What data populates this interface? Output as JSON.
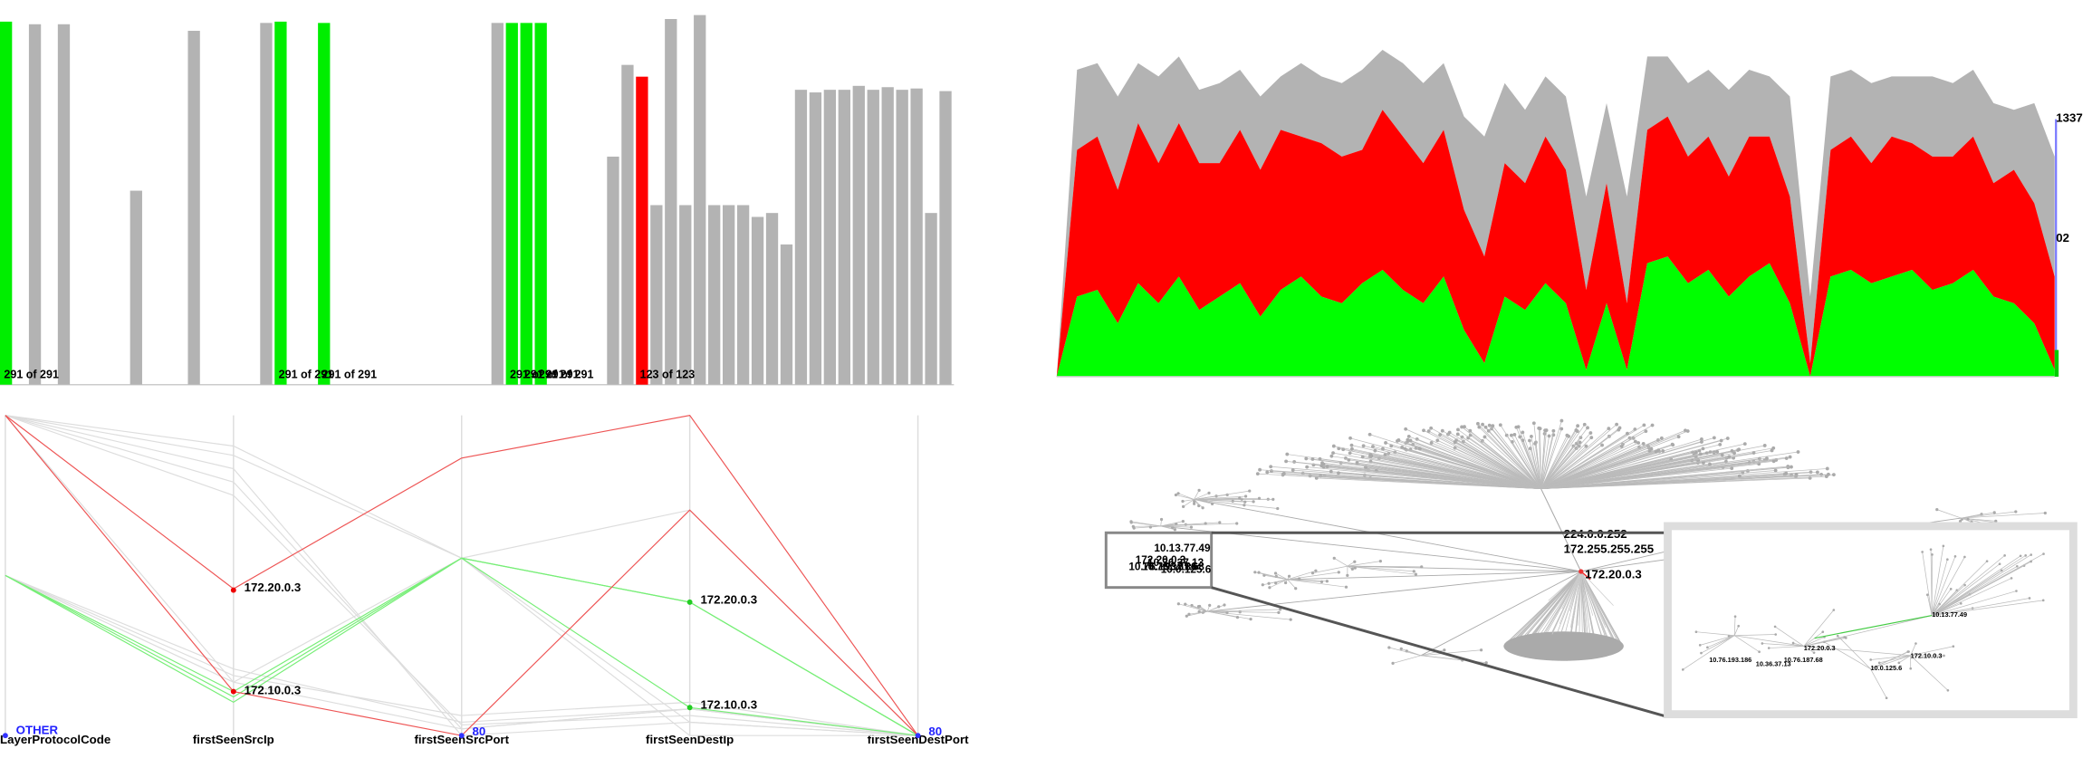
{
  "chart_data": [
    {
      "type": "bar",
      "categories": [
        null,
        null,
        null,
        null,
        null,
        null,
        null,
        null,
        null,
        null,
        null,
        null,
        null,
        null,
        null,
        null,
        null,
        null,
        null,
        null,
        null,
        null,
        null,
        null,
        null,
        null,
        null,
        null,
        null,
        null,
        null,
        null,
        null,
        null,
        null,
        null,
        null,
        null,
        null,
        null,
        null,
        null,
        null,
        null,
        null,
        null,
        null,
        null,
        null,
        null,
        null,
        null,
        null,
        null,
        null,
        null,
        null,
        null,
        null,
        null,
        null,
        null,
        null,
        null,
        null,
        null
      ],
      "values": [
        277,
        null,
        275,
        null,
        275,
        null,
        null,
        null,
        null,
        148,
        null,
        null,
        null,
        270,
        null,
        null,
        null,
        null,
        276,
        277,
        null,
        null,
        276,
        null,
        null,
        null,
        null,
        null,
        null,
        null,
        null,
        null,
        null,
        null,
        276,
        276,
        276,
        276,
        null,
        null,
        null,
        null,
        174,
        244,
        235,
        137,
        279,
        137,
        282,
        137,
        137,
        137,
        128,
        131,
        107,
        225,
        223,
        225,
        225,
        228,
        225,
        227,
        225,
        226,
        131,
        224
      ],
      "colors": [
        "#00ee00",
        null,
        "#b3b3b3",
        null,
        "#b3b3b3",
        null,
        null,
        null,
        null,
        "#b3b3b3",
        null,
        null,
        null,
        "#b3b3b3",
        null,
        null,
        null,
        null,
        "#b3b3b3",
        "#00ee00",
        null,
        null,
        "#00ee00",
        null,
        null,
        null,
        null,
        null,
        null,
        null,
        null,
        null,
        null,
        null,
        "#b3b3b3",
        "#00ee00",
        "#00ee00",
        "#00ee00",
        null,
        null,
        null,
        null,
        "#b3b3b3",
        "#b3b3b3",
        "#ff0000",
        "#b3b3b3",
        "#b3b3b3",
        "#b3b3b3",
        "#b3b3b3",
        "#b3b3b3",
        "#b3b3b3",
        "#b3b3b3",
        "#b3b3b3",
        "#b3b3b3",
        "#b3b3b3",
        "#b3b3b3",
        "#b3b3b3",
        "#b3b3b3",
        "#b3b3b3",
        "#b3b3b3",
        "#b3b3b3",
        "#b3b3b3",
        "#b3b3b3",
        "#b3b3b3",
        "#b3b3b3",
        "#b3b3b3"
      ],
      "bar_labels": [
        "291 of 291",
        null,
        null,
        null,
        null,
        null,
        null,
        null,
        null,
        null,
        null,
        null,
        null,
        null,
        null,
        null,
        null,
        null,
        null,
        "291 of 291",
        null,
        null,
        "291 of 291",
        null,
        null,
        null,
        null,
        null,
        null,
        null,
        null,
        null,
        null,
        null,
        null,
        "291 of 291",
        "291 of 291",
        "291 of 291",
        null,
        null,
        null,
        null,
        null,
        null,
        "123 of 123",
        null,
        null,
        null,
        null,
        null,
        null,
        null,
        null,
        null,
        null,
        null,
        null,
        null,
        null,
        null,
        null,
        null,
        null,
        null,
        null,
        null
      ],
      "ylim": [
        0,
        282
      ]
    },
    {
      "type": "area",
      "stacked": true,
      "categories": [
        null,
        null,
        null,
        null,
        null,
        null,
        null,
        null,
        null,
        null,
        null,
        null,
        null,
        null,
        null,
        null,
        null,
        null,
        null,
        null,
        null,
        null,
        null,
        null,
        null,
        null,
        null,
        null,
        null,
        null,
        null,
        null,
        null,
        null,
        null,
        null,
        null,
        null,
        null,
        null,
        null,
        null,
        null,
        null,
        null,
        null,
        null,
        null,
        null,
        null
      ],
      "series": [
        {
          "color": "#00ff00",
          "values": [
            0,
            60,
            65,
            40,
            70,
            55,
            75,
            50,
            60,
            70,
            45,
            65,
            75,
            60,
            55,
            70,
            80,
            65,
            55,
            75,
            35,
            10,
            60,
            50,
            70,
            55,
            5,
            55,
            5,
            85,
            90,
            70,
            80,
            60,
            75,
            85,
            55,
            0,
            75,
            80,
            70,
            75,
            80,
            65,
            70,
            80,
            60,
            55,
            40,
            5
          ]
        },
        {
          "color": "#ff0000",
          "values": [
            0,
            110,
            115,
            100,
            120,
            105,
            115,
            110,
            100,
            115,
            110,
            120,
            105,
            115,
            110,
            100,
            120,
            115,
            105,
            110,
            90,
            80,
            100,
            95,
            110,
            100,
            60,
            90,
            50,
            100,
            105,
            95,
            100,
            90,
            105,
            95,
            80,
            10,
            95,
            100,
            90,
            105,
            95,
            100,
            95,
            100,
            85,
            100,
            90,
            70
          ]
        },
        {
          "color": "#b3b3b3",
          "values": [
            0,
            60,
            55,
            70,
            45,
            65,
            50,
            55,
            60,
            45,
            55,
            40,
            55,
            50,
            55,
            60,
            45,
            55,
            60,
            50,
            70,
            90,
            60,
            55,
            45,
            55,
            70,
            60,
            80,
            55,
            45,
            55,
            50,
            65,
            50,
            45,
            75,
            50,
            55,
            50,
            60,
            45,
            50,
            60,
            55,
            50,
            60,
            45,
            75,
            90
          ]
        }
      ],
      "annotations": [
        "1337",
        "02"
      ],
      "ylim": [
        0,
        246
      ]
    },
    {
      "type": "parallel",
      "axes": [
        "LayerProtocolCode",
        "firstSeenSrcIp",
        "firstSeenSrcPort",
        "firstSeenDestIp",
        "firstSeenDestPort"
      ],
      "point_labels": [
        "OTHER",
        "172.20.0.3",
        "172.10.0.3",
        "80",
        "172.20.0.3",
        "172.10.0.3",
        "80"
      ],
      "series": [
        {
          "color": "#dddddd",
          "values": [
            240,
            217,
            133,
            169,
            0
          ]
        },
        {
          "color": "#dddddd",
          "values": [
            240,
            200,
            0,
            10,
            0
          ]
        },
        {
          "color": "#dddddd",
          "values": [
            240,
            190,
            5,
            20,
            0
          ]
        },
        {
          "color": "#dddddd",
          "values": [
            240,
            180,
            8,
            15,
            0
          ]
        },
        {
          "color": "#dddddd",
          "values": [
            240,
            40,
            5,
            20,
            0
          ]
        },
        {
          "color": "#dddddd",
          "values": [
            240,
            210,
            133,
            10,
            0
          ]
        },
        {
          "color": "#dddddd",
          "values": [
            120,
            50,
            10,
            20,
            0
          ]
        },
        {
          "color": "#dddddd",
          "values": [
            120,
            45,
            15,
            25,
            0
          ]
        },
        {
          "color": "#dddddd",
          "values": [
            120,
            40,
            133,
            0,
            0
          ]
        },
        {
          "color": "#77ee77",
          "values": [
            120,
            33,
            133,
            100,
            0
          ]
        },
        {
          "color": "#77ee77",
          "values": [
            120,
            25,
            133,
            21,
            0
          ]
        },
        {
          "color": "#77ee77",
          "values": [
            120,
            29,
            133,
            100,
            0
          ]
        },
        {
          "color": "#ee5555",
          "values": [
            240,
            110,
            208,
            240,
            0
          ]
        },
        {
          "color": "#ee5555",
          "values": [
            240,
            33,
            0,
            169,
            0
          ]
        }
      ],
      "ylim": [
        0,
        240
      ]
    }
  ],
  "network": {
    "labels": [
      "224.0.0.252",
      "172.255.255.255",
      "172.20.0.3"
    ],
    "zoom_labels": [
      "10.13.77.49",
      "172.20.0.3",
      "10.36.37.13",
      "10.76.187.68",
      "10.0.125.6",
      "10.76.193.186"
    ],
    "inset_labels": [
      "10.13.77.49",
      "172.20.0.3",
      "10.76.193.186",
      "10.36.37.13",
      "10.76.187.68",
      "172.10.0.3",
      "10.0.125.6"
    ]
  }
}
